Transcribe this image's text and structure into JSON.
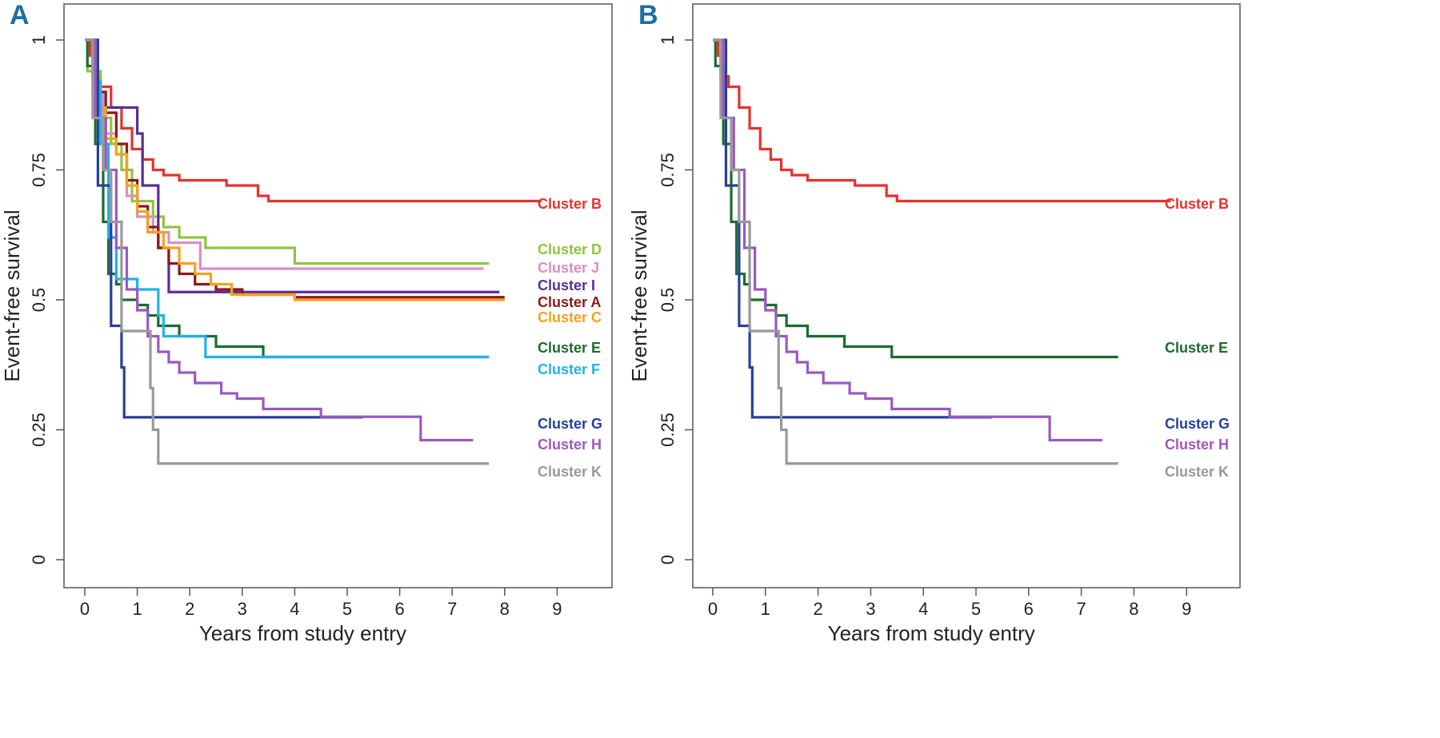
{
  "chart_data": [
    {
      "type": "line",
      "subtype": "kaplan-meier step",
      "panel_label": "A",
      "xlabel": "Years from study entry",
      "ylabel": "Event-free survival",
      "xlim": [
        0,
        9
      ],
      "ylim": [
        0,
        1
      ],
      "xticks": [
        "0",
        "1",
        "2",
        "3",
        "4",
        "5",
        "6",
        "7",
        "8",
        "9"
      ],
      "yticks": [
        "0",
        "0.25",
        "0.5",
        "0.75",
        "1"
      ],
      "grid": false,
      "series": [
        {
          "name": "Cluster B",
          "color": "#e8322a",
          "end": 8.7,
          "points": [
            [
              0,
              1
            ],
            [
              0.1,
              0.97
            ],
            [
              0.15,
              0.93
            ],
            [
              0.3,
              0.91
            ],
            [
              0.5,
              0.87
            ],
            [
              0.7,
              0.83
            ],
            [
              0.9,
              0.79
            ],
            [
              1.1,
              0.77
            ],
            [
              1.3,
              0.75
            ],
            [
              1.5,
              0.74
            ],
            [
              1.8,
              0.73
            ],
            [
              2.7,
              0.72
            ],
            [
              3.3,
              0.7
            ],
            [
              3.5,
              0.69
            ]
          ]
        },
        {
          "name": "Cluster D",
          "color": "#8dc63f",
          "end": 7.7,
          "points": [
            [
              0,
              1
            ],
            [
              0.05,
              0.94
            ],
            [
              0.3,
              0.85
            ],
            [
              0.5,
              0.8
            ],
            [
              0.7,
              0.75
            ],
            [
              0.9,
              0.69
            ],
            [
              1.3,
              0.66
            ],
            [
              1.5,
              0.64
            ],
            [
              1.8,
              0.62
            ],
            [
              2.3,
              0.6
            ],
            [
              4.0,
              0.57
            ]
          ]
        },
        {
          "name": "Cluster J",
          "color": "#d98fc8",
          "end": 7.6,
          "points": [
            [
              0,
              1
            ],
            [
              0.15,
              0.9
            ],
            [
              0.35,
              0.82
            ],
            [
              0.6,
              0.78
            ],
            [
              0.8,
              0.7
            ],
            [
              1.0,
              0.66
            ],
            [
              1.3,
              0.63
            ],
            [
              1.6,
              0.61
            ],
            [
              2.2,
              0.56
            ]
          ]
        },
        {
          "name": "Cluster I",
          "color": "#5b2d96",
          "end": 7.9,
          "points": [
            [
              0,
              1
            ],
            [
              0.25,
              0.87
            ],
            [
              1.0,
              0.82
            ],
            [
              1.1,
              0.72
            ],
            [
              1.4,
              0.6
            ],
            [
              1.6,
              0.515
            ]
          ]
        },
        {
          "name": "Cluster A",
          "color": "#8b1a1a",
          "end": 8.0,
          "points": [
            [
              0,
              1
            ],
            [
              0.2,
              0.9
            ],
            [
              0.4,
              0.86
            ],
            [
              0.6,
              0.8
            ],
            [
              0.8,
              0.73
            ],
            [
              1.0,
              0.68
            ],
            [
              1.2,
              0.64
            ],
            [
              1.4,
              0.6
            ],
            [
              1.6,
              0.57
            ],
            [
              1.8,
              0.55
            ],
            [
              2.1,
              0.53
            ],
            [
              2.5,
              0.52
            ],
            [
              3.0,
              0.51
            ],
            [
              4.0,
              0.505
            ]
          ]
        },
        {
          "name": "Cluster C",
          "color": "#f7a11a",
          "end": 8.0,
          "points": [
            [
              0,
              1
            ],
            [
              0.2,
              0.87
            ],
            [
              0.4,
              0.81
            ],
            [
              0.6,
              0.78
            ],
            [
              0.8,
              0.72
            ],
            [
              1.0,
              0.67
            ],
            [
              1.2,
              0.63
            ],
            [
              1.5,
              0.6
            ],
            [
              1.8,
              0.57
            ],
            [
              2.1,
              0.55
            ],
            [
              2.4,
              0.53
            ],
            [
              2.8,
              0.51
            ],
            [
              4.0,
              0.5
            ]
          ]
        },
        {
          "name": "Cluster E",
          "color": "#1e6b2e",
          "end": 7.7,
          "points": [
            [
              0,
              1
            ],
            [
              0.05,
              0.95
            ],
            [
              0.2,
              0.8
            ],
            [
              0.35,
              0.65
            ],
            [
              0.45,
              0.55
            ],
            [
              0.6,
              0.53
            ],
            [
              0.7,
              0.5
            ],
            [
              1.0,
              0.49
            ],
            [
              1.2,
              0.47
            ],
            [
              1.4,
              0.45
            ],
            [
              1.8,
              0.43
            ],
            [
              2.5,
              0.41
            ],
            [
              3.4,
              0.39
            ]
          ]
        },
        {
          "name": "Cluster F",
          "color": "#1fb3e8",
          "end": 7.7,
          "points": [
            [
              0,
              1
            ],
            [
              0.15,
              0.92
            ],
            [
              0.3,
              0.8
            ],
            [
              0.45,
              0.62
            ],
            [
              0.6,
              0.54
            ],
            [
              1.0,
              0.52
            ],
            [
              1.4,
              0.47
            ],
            [
              1.5,
              0.43
            ],
            [
              2.3,
              0.39
            ]
          ]
        },
        {
          "name": "Cluster G",
          "color": "#27409a",
          "end": 5.3,
          "points": [
            [
              0,
              1
            ],
            [
              0.25,
              0.72
            ],
            [
              0.5,
              0.45
            ],
            [
              0.7,
              0.37
            ],
            [
              0.75,
              0.274
            ]
          ]
        },
        {
          "name": "Cluster H",
          "color": "#9b59c0",
          "end": 7.4,
          "points": [
            [
              0,
              1
            ],
            [
              0.2,
              0.85
            ],
            [
              0.4,
              0.75
            ],
            [
              0.6,
              0.6
            ],
            [
              0.8,
              0.52
            ],
            [
              1.0,
              0.48
            ],
            [
              1.2,
              0.43
            ],
            [
              1.4,
              0.4
            ],
            [
              1.6,
              0.38
            ],
            [
              1.8,
              0.36
            ],
            [
              2.1,
              0.34
            ],
            [
              2.6,
              0.32
            ],
            [
              2.9,
              0.31
            ],
            [
              3.4,
              0.29
            ],
            [
              4.5,
              0.275
            ],
            [
              6.4,
              0.23
            ]
          ]
        },
        {
          "name": "Cluster K",
          "color": "#999999",
          "end": 7.7,
          "points": [
            [
              0,
              1
            ],
            [
              0.15,
              0.85
            ],
            [
              0.35,
              0.75
            ],
            [
              0.5,
              0.65
            ],
            [
              0.7,
              0.44
            ],
            [
              1.2,
              0.44
            ],
            [
              1.25,
              0.33
            ],
            [
              1.3,
              0.25
            ],
            [
              1.4,
              0.185
            ]
          ]
        }
      ]
    },
    {
      "type": "line",
      "subtype": "kaplan-meier step",
      "panel_label": "B",
      "xlabel": "Years from study entry",
      "ylabel": "Event-free survival",
      "xlim": [
        0,
        9
      ],
      "ylim": [
        0,
        1
      ],
      "xticks": [
        "0",
        "1",
        "2",
        "3",
        "4",
        "5",
        "6",
        "7",
        "8",
        "9"
      ],
      "yticks": [
        "0",
        "0.25",
        "0.5",
        "0.75",
        "1"
      ],
      "grid": false,
      "series": [
        {
          "name": "Cluster B",
          "color": "#e8322a",
          "end": 8.7,
          "points": [
            [
              0,
              1
            ],
            [
              0.1,
              0.97
            ],
            [
              0.15,
              0.93
            ],
            [
              0.3,
              0.91
            ],
            [
              0.5,
              0.87
            ],
            [
              0.7,
              0.83
            ],
            [
              0.9,
              0.79
            ],
            [
              1.1,
              0.77
            ],
            [
              1.3,
              0.75
            ],
            [
              1.5,
              0.74
            ],
            [
              1.8,
              0.73
            ],
            [
              2.7,
              0.72
            ],
            [
              3.3,
              0.7
            ],
            [
              3.5,
              0.69
            ]
          ]
        },
        {
          "name": "Cluster E",
          "color": "#1e6b2e",
          "end": 7.7,
          "points": [
            [
              0,
              1
            ],
            [
              0.05,
              0.95
            ],
            [
              0.2,
              0.8
            ],
            [
              0.35,
              0.65
            ],
            [
              0.45,
              0.55
            ],
            [
              0.6,
              0.53
            ],
            [
              0.7,
              0.5
            ],
            [
              1.0,
              0.49
            ],
            [
              1.2,
              0.47
            ],
            [
              1.4,
              0.45
            ],
            [
              1.8,
              0.43
            ],
            [
              2.5,
              0.41
            ],
            [
              3.4,
              0.39
            ]
          ]
        },
        {
          "name": "Cluster G",
          "color": "#27409a",
          "end": 5.3,
          "points": [
            [
              0,
              1
            ],
            [
              0.25,
              0.72
            ],
            [
              0.5,
              0.45
            ],
            [
              0.7,
              0.37
            ],
            [
              0.75,
              0.274
            ]
          ]
        },
        {
          "name": "Cluster H",
          "color": "#9b59c0",
          "end": 7.4,
          "points": [
            [
              0,
              1
            ],
            [
              0.2,
              0.85
            ],
            [
              0.4,
              0.75
            ],
            [
              0.6,
              0.6
            ],
            [
              0.8,
              0.52
            ],
            [
              1.0,
              0.48
            ],
            [
              1.2,
              0.43
            ],
            [
              1.4,
              0.4
            ],
            [
              1.6,
              0.38
            ],
            [
              1.8,
              0.36
            ],
            [
              2.1,
              0.34
            ],
            [
              2.6,
              0.32
            ],
            [
              2.9,
              0.31
            ],
            [
              3.4,
              0.29
            ],
            [
              4.5,
              0.275
            ],
            [
              6.4,
              0.23
            ]
          ]
        },
        {
          "name": "Cluster K",
          "color": "#999999",
          "end": 7.7,
          "points": [
            [
              0,
              1
            ],
            [
              0.15,
              0.85
            ],
            [
              0.35,
              0.75
            ],
            [
              0.5,
              0.65
            ],
            [
              0.7,
              0.44
            ],
            [
              1.2,
              0.44
            ],
            [
              1.25,
              0.33
            ],
            [
              1.3,
              0.25
            ],
            [
              1.4,
              0.185
            ]
          ]
        }
      ]
    }
  ]
}
